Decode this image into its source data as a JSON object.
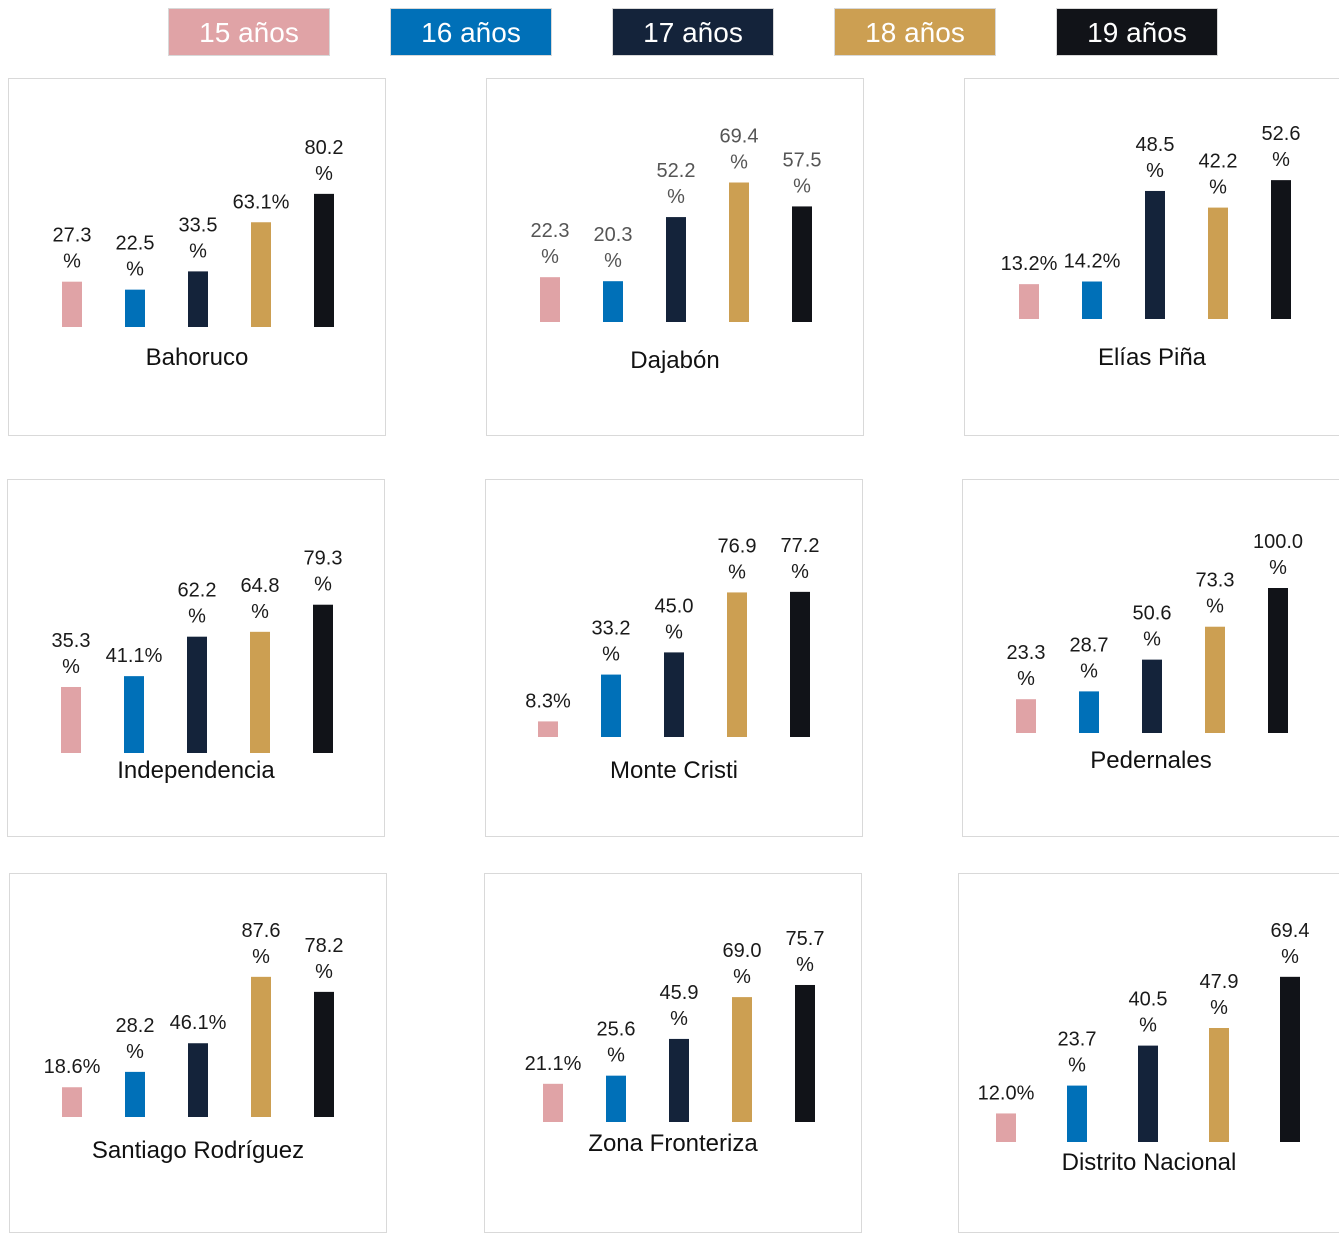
{
  "legend": {
    "items": [
      {
        "label": "15 años",
        "color": "#e0a3a6"
      },
      {
        "label": "16 años",
        "color": "#0070b8"
      },
      {
        "label": "17 años",
        "color": "#14233a"
      },
      {
        "label": "18 años",
        "color": "#cc9f52"
      },
      {
        "label": "19 años",
        "color": "#111318"
      }
    ]
  },
  "chart_data": [
    {
      "type": "bar",
      "title": "Bahoruco",
      "categories": [
        "15 años",
        "16 años",
        "17 años",
        "18 años",
        "19 años"
      ],
      "values": [
        27.3,
        22.5,
        33.5,
        63.1,
        80.2
      ],
      "labels": [
        [
          "27.3",
          "%"
        ],
        [
          "22.5",
          "%"
        ],
        [
          "33.5",
          "%"
        ],
        [
          "63.1%"
        ],
        [
          "80.2",
          "%"
        ]
      ]
    },
    {
      "type": "bar",
      "title": "Dajabón",
      "categories": [
        "15 años",
        "16 años",
        "17 años",
        "18 años",
        "19 años"
      ],
      "values": [
        22.3,
        20.3,
        52.2,
        69.4,
        57.5
      ],
      "labels": [
        [
          "22.3",
          "%"
        ],
        [
          "20.3",
          "%"
        ],
        [
          "52.2",
          "%"
        ],
        [
          "69.4",
          "%"
        ],
        [
          "57.5",
          "%"
        ]
      ]
    },
    {
      "type": "bar",
      "title": "Elías Piña",
      "categories": [
        "15 años",
        "16 años",
        "17 años",
        "18 años",
        "19 años"
      ],
      "values": [
        13.2,
        14.2,
        48.5,
        42.2,
        52.6
      ],
      "labels": [
        [
          "13.2%"
        ],
        [
          "14.2%"
        ],
        [
          "48.5",
          "%"
        ],
        [
          "42.2",
          "%"
        ],
        [
          "52.6",
          "%"
        ]
      ]
    },
    {
      "type": "bar",
      "title": "Independencia",
      "categories": [
        "15 años",
        "16 años",
        "17 años",
        "18 años",
        "19 años"
      ],
      "values": [
        35.3,
        41.1,
        62.2,
        64.8,
        79.3
      ],
      "labels": [
        [
          "35.3",
          "%"
        ],
        [
          "41.1%"
        ],
        [
          "62.2",
          "%"
        ],
        [
          "64.8",
          "%"
        ],
        [
          "79.3",
          "%"
        ]
      ]
    },
    {
      "type": "bar",
      "title": "Monte Cristi",
      "categories": [
        "15 años",
        "16 años",
        "17 años",
        "18 años",
        "19 años"
      ],
      "values": [
        8.3,
        33.2,
        45.0,
        76.9,
        77.2
      ],
      "labels": [
        [
          "8.3%"
        ],
        [
          "33.2",
          "%"
        ],
        [
          "45.0",
          "%"
        ],
        [
          "76.9",
          "%"
        ],
        [
          "77.2",
          "%"
        ]
      ]
    },
    {
      "type": "bar",
      "title": "Pedernales",
      "categories": [
        "15 años",
        "16 años",
        "17 años",
        "18 años",
        "19 años"
      ],
      "values": [
        23.3,
        28.7,
        50.6,
        73.3,
        100.0
      ],
      "labels": [
        [
          "23.3",
          "%"
        ],
        [
          "28.7",
          "%"
        ],
        [
          "50.6",
          "%"
        ],
        [
          "73.3",
          "%"
        ],
        [
          "100.0",
          "%"
        ]
      ]
    },
    {
      "type": "bar",
      "title": "Santiago Rodríguez",
      "categories": [
        "15 años",
        "16 años",
        "17 años",
        "18 años",
        "19 años"
      ],
      "values": [
        18.6,
        28.2,
        46.1,
        87.6,
        78.2
      ],
      "labels": [
        [
          "18.6%"
        ],
        [
          "28.2",
          "%"
        ],
        [
          "46.1%"
        ],
        [
          "87.6",
          "%"
        ],
        [
          "78.2",
          "%"
        ]
      ]
    },
    {
      "type": "bar",
      "title": "Zona Fronteriza",
      "categories": [
        "15 años",
        "16 años",
        "17 años",
        "18 años",
        "19 años"
      ],
      "values": [
        21.1,
        25.6,
        45.9,
        69.0,
        75.7
      ],
      "labels": [
        [
          "21.1%"
        ],
        [
          "25.6",
          "%"
        ],
        [
          "45.9",
          "%"
        ],
        [
          "69.0",
          "%"
        ],
        [
          "75.7",
          "%"
        ]
      ]
    },
    {
      "type": "bar",
      "title": "Distrito Nacional",
      "categories": [
        "15 años",
        "16 años",
        "17 años",
        "18 años",
        "19 años"
      ],
      "values": [
        12.0,
        23.7,
        40.5,
        47.9,
        69.4
      ],
      "labels": [
        [
          "12.0%"
        ],
        [
          "23.7",
          "%"
        ],
        [
          "40.5",
          "%"
        ],
        [
          "47.9",
          "%"
        ],
        [
          "69.4",
          "%"
        ]
      ]
    }
  ]
}
